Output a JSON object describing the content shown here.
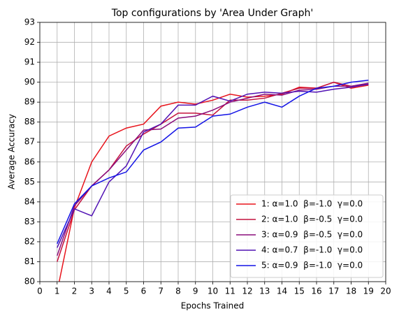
{
  "chart_data": {
    "type": "line",
    "title": "Top configurations by 'Area Under Graph'",
    "xlabel": "Epochs Trained",
    "ylabel": "Average Accuracy",
    "x": [
      1,
      2,
      3,
      4,
      5,
      6,
      7,
      8,
      9,
      10,
      11,
      12,
      13,
      14,
      15,
      16,
      17,
      18,
      19
    ],
    "series": [
      {
        "name": "1: α=1.0  β=-1.0  γ=0.0",
        "color": "#e8141c",
        "values": [
          79.5,
          83.7,
          86.0,
          87.3,
          87.7,
          87.9,
          88.8,
          89.0,
          88.9,
          89.1,
          89.4,
          89.25,
          89.3,
          89.4,
          89.75,
          89.7,
          90.0,
          89.7,
          89.85
        ]
      },
      {
        "name": "2: α=1.0  β=-0.5  γ=0.0",
        "color": "#c4123e",
        "values": [
          81.0,
          83.6,
          84.8,
          85.6,
          86.8,
          87.4,
          87.9,
          88.45,
          88.45,
          88.35,
          89.1,
          89.1,
          89.2,
          89.45,
          89.7,
          89.7,
          90.0,
          89.8,
          89.9
        ]
      },
      {
        "name": "3: α=0.9  β=-0.5  γ=0.0",
        "color": "#8a0e7c",
        "values": [
          81.3,
          83.8,
          84.8,
          85.6,
          86.6,
          87.6,
          87.65,
          88.2,
          88.3,
          88.6,
          89.0,
          89.2,
          89.4,
          89.35,
          89.6,
          89.65,
          89.8,
          89.8,
          89.95
        ]
      },
      {
        "name": "4: α=0.7  β=-1.0  γ=0.0",
        "color": "#5112b4",
        "values": [
          81.7,
          83.65,
          83.3,
          85.0,
          85.8,
          87.5,
          87.9,
          88.85,
          88.85,
          89.3,
          89.05,
          89.4,
          89.5,
          89.45,
          89.55,
          89.5,
          89.65,
          89.75,
          89.9
        ]
      },
      {
        "name": "5: α=0.9  β=-1.0  γ=0.0",
        "color": "#1414e6",
        "values": [
          81.9,
          83.9,
          84.8,
          85.2,
          85.5,
          86.6,
          87.0,
          87.7,
          87.75,
          88.3,
          88.4,
          88.75,
          89.0,
          88.75,
          89.3,
          89.7,
          89.8,
          90.0,
          90.1
        ]
      }
    ],
    "xlim": [
      0,
      20
    ],
    "xticks": [
      0,
      1,
      2,
      3,
      4,
      5,
      6,
      7,
      8,
      9,
      10,
      11,
      12,
      13,
      14,
      15,
      16,
      17,
      18,
      19,
      20
    ],
    "ylim": [
      80,
      93
    ],
    "yticks": [
      80,
      81,
      82,
      83,
      84,
      85,
      86,
      87,
      88,
      89,
      90,
      91,
      92,
      93
    ],
    "grid": true,
    "legend": "lower right"
  }
}
